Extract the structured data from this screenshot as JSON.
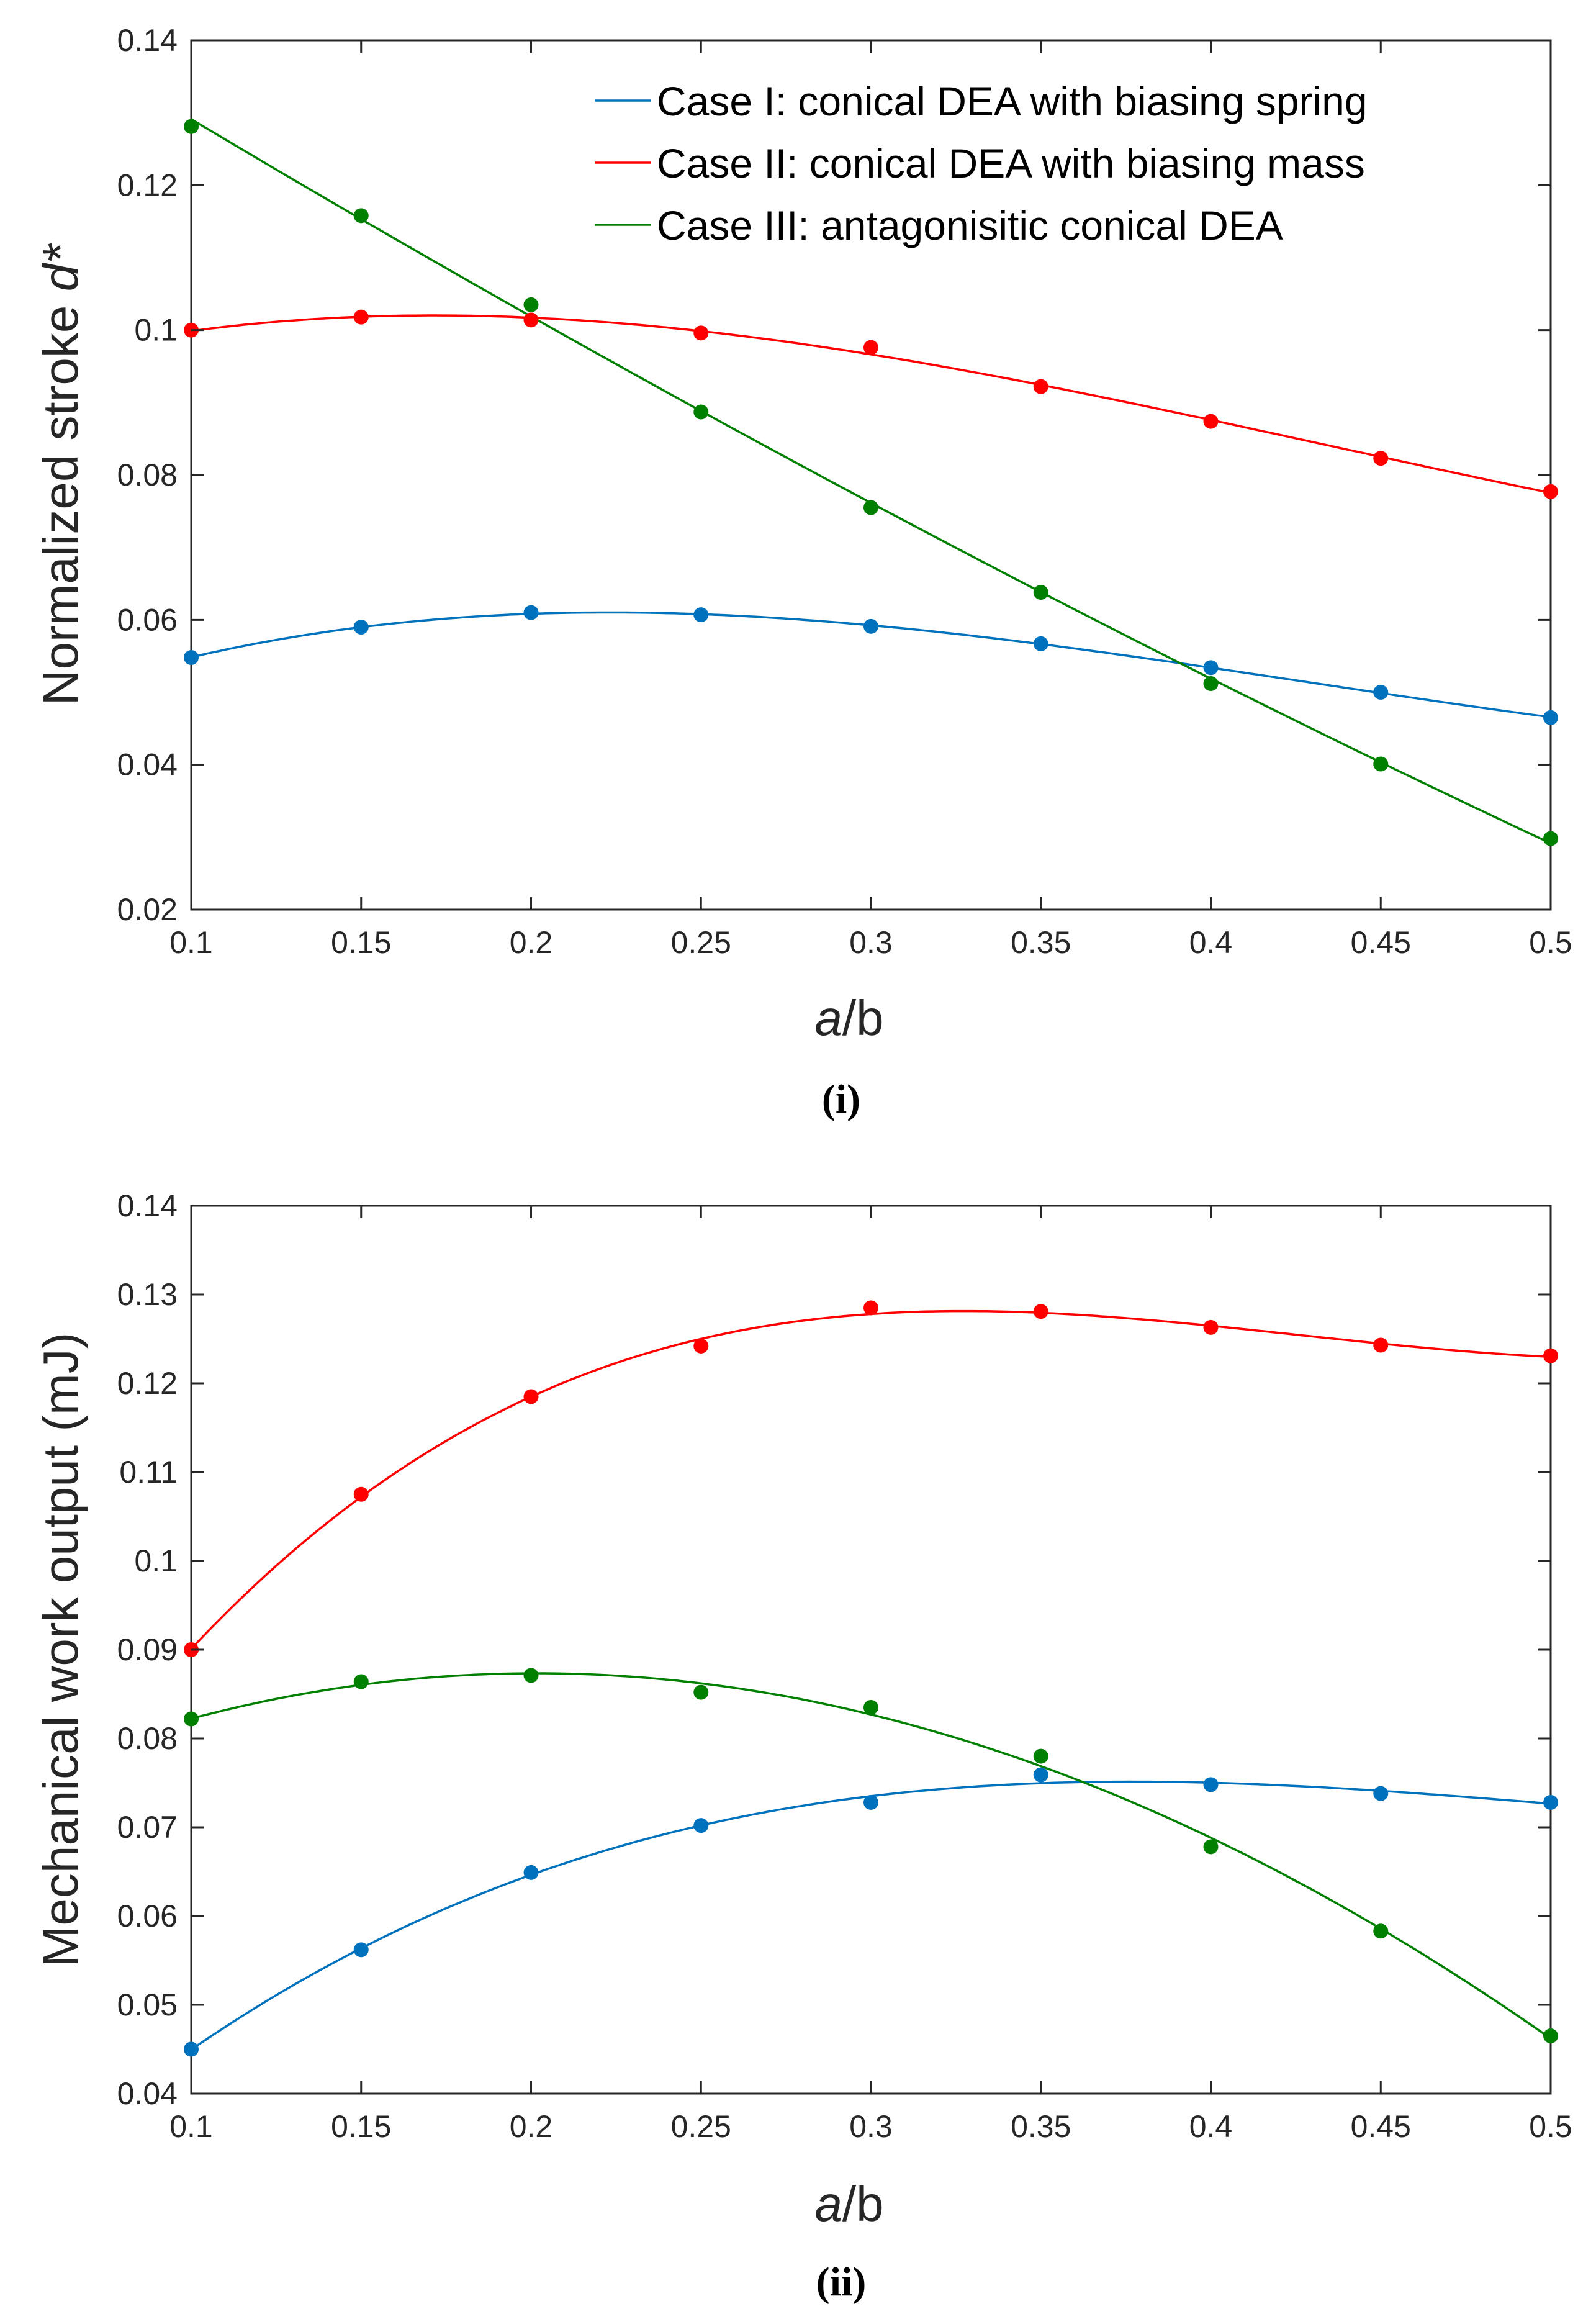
{
  "chart_data": [
    {
      "type": "scatter",
      "caption": "(i)",
      "xlabel_italic": "a",
      "xlabel_rest": "/b",
      "ylabel_main": "Normalized stroke ",
      "ylabel_italic": "d*",
      "xlim": [
        0.1,
        0.5
      ],
      "ylim": [
        0.02,
        0.14
      ],
      "xticks": [
        "0.1",
        "0.15",
        "0.2",
        "0.25",
        "0.3",
        "0.35",
        "0.4",
        "0.45",
        "0.5"
      ],
      "yticks": [
        "0.02",
        "0.04",
        "0.06",
        "0.08",
        "0.1",
        "0.12",
        "0.14"
      ],
      "x": [
        0.1,
        0.15,
        0.2,
        0.25,
        0.3,
        0.35,
        0.4,
        0.45,
        0.5
      ],
      "legend_position": "top-right",
      "series": [
        {
          "name": "Case I: conical DEA with biasing spring",
          "color": "#0072BD",
          "values": [
            0.0548,
            0.059,
            0.061,
            0.0607,
            0.0591,
            0.0567,
            0.0534,
            0.05,
            0.0465
          ]
        },
        {
          "name": "Case II: conical DEA with biasing mass",
          "color": "#FF0000",
          "values": [
            0.1,
            0.1018,
            0.1014,
            0.0996,
            0.0976,
            0.0922,
            0.0874,
            0.0823,
            0.0777
          ]
        },
        {
          "name": "Case III: antagonisitic conical DEA",
          "color": "#008000",
          "values": [
            0.1281,
            0.1158,
            0.1035,
            0.0887,
            0.0755,
            0.0638,
            0.0512,
            0.0401,
            0.0298
          ]
        }
      ]
    },
    {
      "type": "scatter",
      "caption": "(ii)",
      "xlabel_italic": "a",
      "xlabel_rest": "/b",
      "ylabel_main": "Mechanical work output (mJ)",
      "ylabel_italic": "",
      "xlim": [
        0.1,
        0.5
      ],
      "ylim": [
        0.04,
        0.14
      ],
      "xticks": [
        "0.1",
        "0.15",
        "0.2",
        "0.25",
        "0.3",
        "0.35",
        "0.4",
        "0.45",
        "0.5"
      ],
      "yticks": [
        "0.04",
        "0.05",
        "0.06",
        "0.07",
        "0.08",
        "0.09",
        "0.1",
        "0.11",
        "0.12",
        "0.13",
        "0.14"
      ],
      "x": [
        0.1,
        0.15,
        0.2,
        0.25,
        0.3,
        0.35,
        0.4,
        0.45,
        0.5
      ],
      "series": [
        {
          "name": "Case I: conical DEA with biasing spring",
          "color": "#0072BD",
          "values": [
            0.045,
            0.0562,
            0.0649,
            0.0702,
            0.0728,
            0.0759,
            0.0748,
            0.0738,
            0.0728
          ]
        },
        {
          "name": "Case II: conical DEA with biasing mass",
          "color": "#FF0000",
          "values": [
            0.09,
            0.1075,
            0.1185,
            0.1242,
            0.1285,
            0.1281,
            0.1263,
            0.1243,
            0.1231
          ]
        },
        {
          "name": "Case III: antagonisitic conical DEA",
          "color": "#008000",
          "values": [
            0.0822,
            0.0864,
            0.0871,
            0.0852,
            0.0835,
            0.078,
            0.0678,
            0.0583,
            0.0465
          ]
        }
      ]
    }
  ]
}
